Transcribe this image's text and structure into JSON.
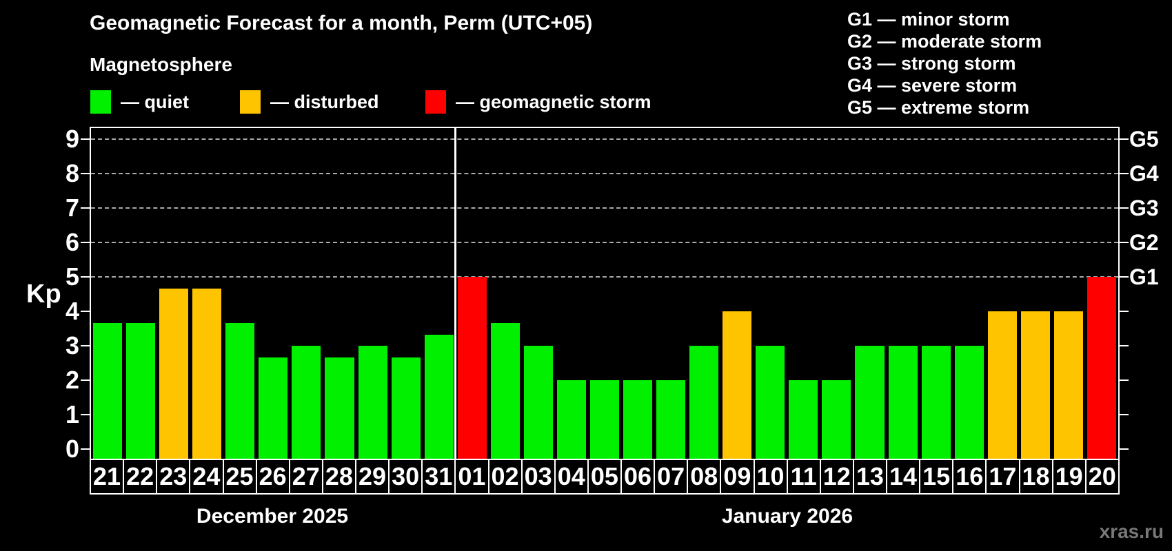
{
  "header": {
    "title": "Geomagnetic Forecast for a month, Perm (UTC+05)",
    "subtitle": "Magnetosphere",
    "watermark": "xras.ru"
  },
  "legend": {
    "items": [
      {
        "label": "— quiet",
        "color": "#00f000",
        "level": "quiet"
      },
      {
        "label": "— disturbed",
        "color": "#ffc400",
        "level": "disturbed"
      },
      {
        "label": "— geomagnetic storm",
        "color": "#ff0000",
        "level": "storm"
      }
    ]
  },
  "gscale_legend": [
    "G1 — minor storm",
    "G2 — moderate storm",
    "G3 — strong storm",
    "G4 — severe storm",
    "G5 — extreme storm"
  ],
  "axes": {
    "y_label": "Kp",
    "y_ticks": [
      0,
      1,
      2,
      3,
      4,
      5,
      6,
      7,
      8,
      9
    ],
    "right_labels": [
      {
        "kp": 5,
        "label": "G1"
      },
      {
        "kp": 6,
        "label": "G2"
      },
      {
        "kp": 7,
        "label": "G3"
      },
      {
        "kp": 8,
        "label": "G4"
      },
      {
        "kp": 9,
        "label": "G5"
      }
    ],
    "grid_kp": [
      5,
      6,
      7,
      8,
      9
    ]
  },
  "months": [
    {
      "label": "December 2025",
      "days": 11
    },
    {
      "label": "January 2026",
      "days": 20
    }
  ],
  "chart_data": {
    "type": "bar",
    "title": "Geomagnetic Forecast for a month, Perm (UTC+05)",
    "xlabel": "",
    "ylabel": "Kp",
    "ylim": [
      0,
      9
    ],
    "grid": "dashed horizontal at Kp 5-9",
    "legend_position": "top-left and top-right",
    "categories": [
      "21",
      "22",
      "23",
      "24",
      "25",
      "26",
      "27",
      "28",
      "29",
      "30",
      "31",
      "01",
      "02",
      "03",
      "04",
      "05",
      "06",
      "07",
      "08",
      "09",
      "10",
      "11",
      "12",
      "13",
      "14",
      "15",
      "16",
      "17",
      "18",
      "19",
      "20"
    ],
    "values": [
      3.67,
      3.67,
      4.67,
      4.67,
      3.67,
      2.67,
      3,
      2.67,
      3,
      2.67,
      3.33,
      5,
      3.67,
      3,
      2,
      2,
      2,
      2,
      3,
      4,
      3,
      2,
      2,
      3,
      3,
      3,
      3,
      4,
      4,
      4,
      5
    ],
    "levels": [
      "quiet",
      "quiet",
      "disturbed",
      "disturbed",
      "quiet",
      "quiet",
      "quiet",
      "quiet",
      "quiet",
      "quiet",
      "quiet",
      "storm",
      "quiet",
      "quiet",
      "quiet",
      "quiet",
      "quiet",
      "quiet",
      "quiet",
      "disturbed",
      "quiet",
      "quiet",
      "quiet",
      "quiet",
      "quiet",
      "quiet",
      "quiet",
      "disturbed",
      "disturbed",
      "disturbed",
      "storm"
    ],
    "colors": {
      "quiet": "#00f000",
      "disturbed": "#ffc400",
      "storm": "#ff0000"
    }
  }
}
